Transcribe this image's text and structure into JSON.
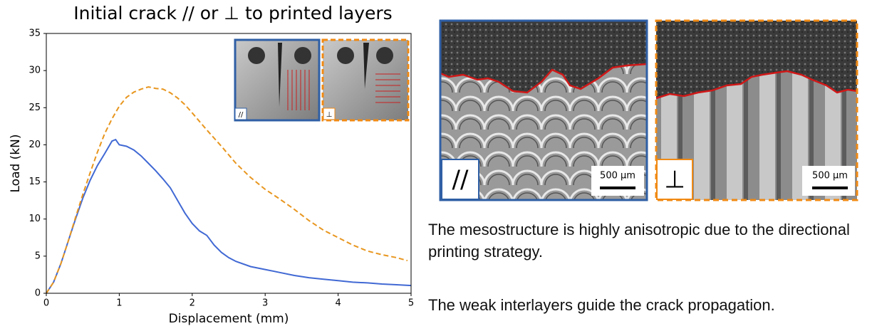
{
  "chart_data": {
    "type": "line",
    "title": "Initial crack // or ⊥ to printed layers",
    "xlabel": "Displacement (mm)",
    "ylabel": "Load (kN)",
    "xlim": [
      0,
      5
    ],
    "ylim": [
      0,
      35
    ],
    "xticks": [
      0,
      1,
      2,
      3,
      4,
      5
    ],
    "yticks": [
      0,
      5,
      10,
      15,
      20,
      25,
      30,
      35
    ],
    "grid": false,
    "series": [
      {
        "color": "#4169d4",
        "linestyle": "solid",
        "x": [
          0,
          0.1,
          0.2,
          0.3,
          0.4,
          0.5,
          0.6,
          0.7,
          0.8,
          0.9,
          0.95,
          1.0,
          1.1,
          1.2,
          1.3,
          1.4,
          1.5,
          1.6,
          1.7,
          1.8,
          1.9,
          2.0,
          2.1,
          2.2,
          2.3,
          2.4,
          2.5,
          2.6,
          2.8,
          3.0,
          3.2,
          3.4,
          3.6,
          3.8,
          4.0,
          4.2,
          4.4,
          4.6,
          4.8,
          5.0
        ],
        "values": [
          0,
          1.5,
          4,
          7,
          10,
          12.8,
          15.2,
          17.2,
          18.8,
          20.5,
          20.7,
          20,
          19.8,
          19.3,
          18.5,
          17.5,
          16.5,
          15.4,
          14.2,
          12.5,
          10.8,
          9.4,
          8.4,
          7.8,
          6.5,
          5.5,
          4.8,
          4.3,
          3.6,
          3.2,
          2.8,
          2.4,
          2.1,
          1.9,
          1.7,
          1.5,
          1.4,
          1.25,
          1.15,
          1.05
        ]
      },
      {
        "color": "#e8961e",
        "linestyle": "dashed",
        "x": [
          0,
          0.1,
          0.2,
          0.3,
          0.4,
          0.5,
          0.6,
          0.7,
          0.8,
          0.9,
          1.0,
          1.1,
          1.2,
          1.3,
          1.4,
          1.5,
          1.6,
          1.7,
          1.8,
          1.9,
          2.0,
          2.2,
          2.4,
          2.6,
          2.8,
          3.0,
          3.2,
          3.4,
          3.6,
          3.8,
          4.0,
          4.2,
          4.4,
          4.6,
          4.8,
          4.95
        ],
        "values": [
          0,
          1.5,
          4,
          7,
          10.2,
          13.3,
          16.2,
          19,
          21.5,
          23.5,
          25.2,
          26.4,
          27.1,
          27.5,
          27.8,
          27.6,
          27.5,
          27,
          26.3,
          25.4,
          24.3,
          22,
          19.8,
          17.5,
          15.6,
          14,
          12.7,
          11.3,
          9.8,
          8.5,
          7.5,
          6.5,
          5.7,
          5.2,
          4.8,
          4.4
        ]
      }
    ]
  },
  "insets": [
    "//",
    "⊥"
  ],
  "panels": [
    {
      "label": "//",
      "scale": "500 µm"
    },
    {
      "label": "⊥",
      "scale": "500 µm"
    }
  ],
  "text": [
    "The mesostructure is highly anisotropic due to the directional printing strategy.",
    "The weak interlayers guide the crack propagation."
  ]
}
